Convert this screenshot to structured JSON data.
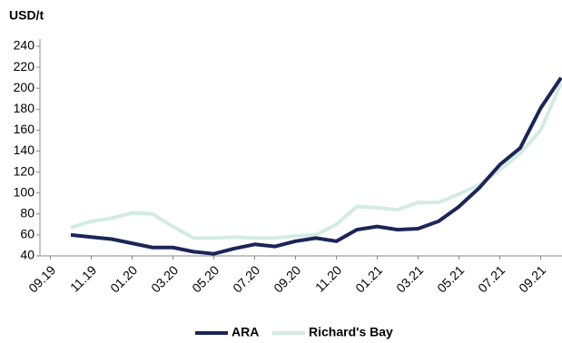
{
  "chart_data": {
    "type": "line",
    "y_label": "USD/t",
    "categories": [
      "09.19",
      null,
      "11.19",
      null,
      "01.20",
      null,
      "03.20",
      null,
      "05.20",
      null,
      "07.20",
      null,
      "09.20",
      null,
      "11.20",
      null,
      "01.21",
      null,
      "03.21",
      null,
      "05.21",
      null,
      "07.21",
      null,
      "09.21",
      null
    ],
    "series": [
      {
        "name": "ARA",
        "color": "#1b2557",
        "values": [
          null,
          60,
          58,
          56,
          52,
          48,
          48,
          44,
          42,
          47,
          51,
          49,
          54,
          57,
          54,
          65,
          68,
          65,
          66,
          73,
          87,
          105,
          127,
          143,
          181,
          210
        ]
      },
      {
        "name": "Richard's Bay",
        "color": "#d3ebe4",
        "values": [
          null,
          67,
          73,
          76,
          81,
          80,
          68,
          57,
          57,
          58,
          57,
          57,
          59,
          60,
          70,
          87,
          86,
          84,
          91,
          91,
          99,
          108,
          122,
          138,
          160,
          205
        ]
      }
    ],
    "ylim": [
      40,
      240
    ],
    "yticks": [
      40,
      60,
      80,
      100,
      120,
      140,
      160,
      180,
      200,
      220,
      240
    ],
    "legend": "bottom"
  }
}
